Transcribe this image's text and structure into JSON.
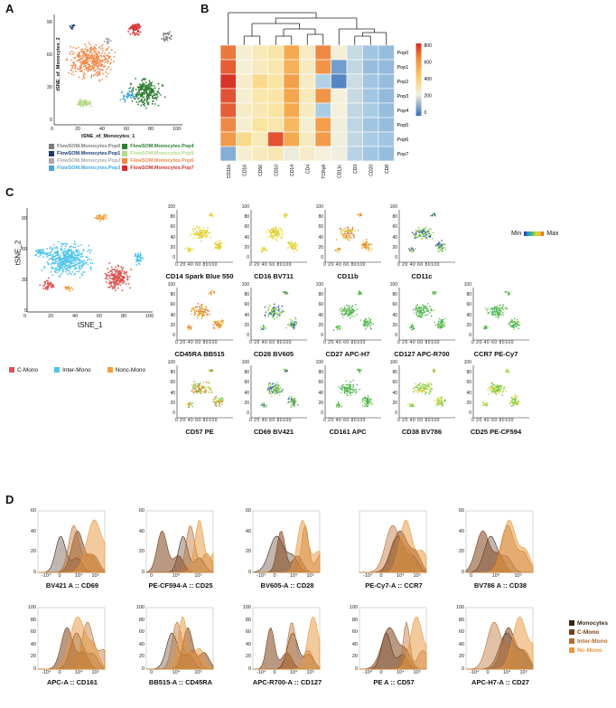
{
  "panels": {
    "a": "A",
    "b": "B",
    "c": "C",
    "d": "D"
  },
  "panelA": {
    "xlabel": "tSNE_of_Monocytes_1",
    "ylabel": "tSNE_of_Monocytes_2",
    "xticks": [
      "0",
      "20",
      "40",
      "60",
      "80",
      "100"
    ],
    "yticks": [
      "0",
      "30",
      "60",
      "90"
    ],
    "legend": [
      {
        "label": "FlowSOM.Monocytes.Pop0",
        "color": "#7b7b7b"
      },
      {
        "label": "FlowSOM.Monocytes.Pop4",
        "color": "#2e7d32"
      },
      {
        "label": "FlowSOM.Monocytes.Pop1",
        "color": "#1a3a75"
      },
      {
        "label": "FlowSOM.Monocytes.Pop5",
        "color": "#b5d88a"
      },
      {
        "label": "FlowSOM.Monocytes.Pop2",
        "color": "#a8a8a8"
      },
      {
        "label": "FlowSOM.Monocytes.Pop6",
        "color": "#f08a4b"
      },
      {
        "label": "FlowSOM.Monocytes.Pop3",
        "color": "#3fa7e0"
      },
      {
        "label": "FlowSOM.Monocytes.Pop7",
        "color": "#d32f2f"
      }
    ]
  },
  "panelB": {
    "columns": [
      "CD11b",
      "CD16",
      "CD56",
      "CD10",
      "CD14",
      "CD4",
      "TCRγδ",
      "CD11c",
      "CD3",
      "CD20",
      "CD8"
    ],
    "rows": [
      "Pop0",
      "Pop1",
      "Pop2",
      "Pop3",
      "Pop4",
      "Pop5",
      "Pop6",
      "Pop7"
    ],
    "colorbar_ticks": [
      "800",
      "600",
      "400",
      "200",
      "0"
    ],
    "matrix": [
      [
        650,
        300,
        340,
        370,
        560,
        320,
        620,
        290,
        180,
        110,
        100
      ],
      [
        700,
        290,
        330,
        360,
        540,
        330,
        600,
        60,
        170,
        100,
        95
      ],
      [
        780,
        310,
        420,
        380,
        580,
        320,
        140,
        30,
        190,
        110,
        100
      ],
      [
        720,
        300,
        360,
        370,
        570,
        340,
        600,
        280,
        180,
        110,
        95
      ],
      [
        700,
        320,
        350,
        380,
        560,
        330,
        120,
        280,
        170,
        120,
        100
      ],
      [
        620,
        300,
        380,
        360,
        520,
        300,
        580,
        270,
        160,
        110,
        100
      ],
      [
        590,
        420,
        340,
        720,
        560,
        330,
        590,
        270,
        170,
        120,
        110
      ],
      [
        80,
        300,
        330,
        350,
        260,
        310,
        280,
        270,
        150,
        110,
        100
      ]
    ]
  },
  "panelC": {
    "xlabel": "tSNE_1",
    "ylabel": "tSNE_2",
    "xticks": [
      "0",
      "20",
      "40",
      "60",
      "80",
      "100"
    ],
    "yticks": [
      "0",
      "30",
      "60",
      "90"
    ],
    "legend": [
      {
        "label": "C-Mono",
        "color": "#d9534f"
      },
      {
        "label": "Inter-Mono",
        "color": "#4fc3e8"
      },
      {
        "label": "Nonc-Mono",
        "color": "#f0a040"
      }
    ],
    "scale_min": "Min",
    "scale_max": "Max",
    "mini_xticks": "0 20 40 60 80100",
    "mini_yticks": [
      "100",
      "80",
      "60",
      "40",
      "20",
      "0"
    ],
    "markers": [
      {
        "label": "CD14 Spark Blue 550",
        "tone": "yellow"
      },
      {
        "label": "CD16 BV711",
        "tone": "yellow"
      },
      {
        "label": "CD11b",
        "tone": "orange"
      },
      {
        "label": "CD11c",
        "tone": "green-blue"
      },
      {
        "label": "CD45RA BB515",
        "tone": "orange"
      },
      {
        "label": "CD28 BV605",
        "tone": "blue-green"
      },
      {
        "label": "CD27 APC-H7",
        "tone": "green"
      },
      {
        "label": "CD127 APC-R700",
        "tone": "green"
      },
      {
        "label": "CCR7 PE-Cy7",
        "tone": "green"
      },
      {
        "label": "CD57 PE",
        "tone": "orange-green"
      },
      {
        "label": "CD69 BV421",
        "tone": "blue-green"
      },
      {
        "label": "CD161 APC",
        "tone": "green"
      },
      {
        "label": "CD38 BV786",
        "tone": "yellow-green"
      },
      {
        "label": "CD25 PE-CF594",
        "tone": "yellow-green"
      }
    ]
  },
  "panelD": {
    "histograms": [
      {
        "label": "BV421 A :: CD69",
        "yticks": [
          "60",
          "40",
          "20",
          "0"
        ],
        "xticks": [
          "-10⁴",
          "0",
          "10⁴",
          "10⁵"
        ]
      },
      {
        "label": "PE-CF594-A :: CD25",
        "yticks": [
          "60",
          "40",
          "20",
          "0"
        ],
        "xticks": [
          "0",
          "10⁴",
          "10⁵"
        ]
      },
      {
        "label": "BV605-A :: CD28",
        "yticks": [
          "60",
          "40",
          "20",
          "0"
        ],
        "xticks": [
          "-10⁴",
          "0",
          "10⁴",
          "10⁵"
        ]
      },
      {
        "label": "PE-Cy7-A :: CCR7",
        "yticks": [],
        "xticks": [
          "-10⁴",
          "0",
          "10⁴",
          "10⁵"
        ]
      },
      {
        "label": "BV786 A :: CD38",
        "yticks": [
          "60",
          "40",
          "20",
          "0"
        ],
        "xticks": [
          "0",
          "10⁴",
          "10⁵"
        ]
      },
      {
        "label": "APC-A :: CD161",
        "yticks": [
          "100",
          "80",
          "60",
          "40",
          "20",
          "0"
        ],
        "xticks": [
          "-10⁴",
          "0",
          "10⁴",
          "10⁵"
        ]
      },
      {
        "label": "BB515-A :: CD45RA",
        "yticks": [
          "100",
          "80",
          "60",
          "40",
          "20",
          "0"
        ],
        "xticks": [
          "0",
          "10⁴",
          "10⁵"
        ]
      },
      {
        "label": "APC-R700-A :: CD127",
        "yticks": [
          "100",
          "80",
          "60",
          "40",
          "20",
          "0"
        ],
        "xticks": [
          "-10⁴",
          "0",
          "10⁴",
          "10⁵"
        ]
      },
      {
        "label": "PE A :: CD57",
        "yticks": [
          "100",
          "80",
          "60",
          "40",
          "20",
          "0"
        ],
        "xticks": [
          "-10⁴",
          "0",
          "10⁴",
          "10⁵"
        ]
      },
      {
        "label": "APC-H7-A :: CD27",
        "yticks": [
          "100",
          "80",
          "60",
          "40",
          "20",
          "0"
        ],
        "xticks": [
          "-10⁴",
          "0",
          "10⁴",
          "10⁵"
        ]
      }
    ],
    "legend": [
      {
        "label": "Monocytes",
        "color": "#3b2314"
      },
      {
        "label": "C-Mono",
        "color": "#7a3e12"
      },
      {
        "label": "Inter-Mono",
        "color": "#b86a2a"
      },
      {
        "label": "Nc-Mono",
        "color": "#e89a3a"
      }
    ]
  }
}
